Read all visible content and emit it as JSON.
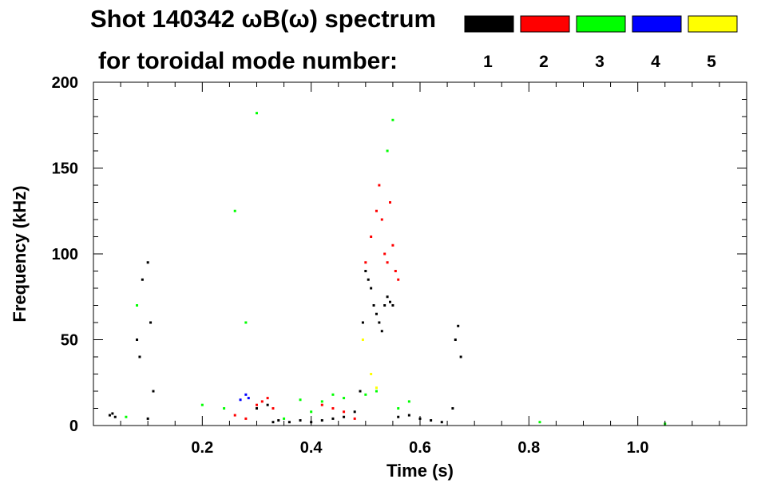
{
  "chart_data": {
    "type": "scatter",
    "title": "Shot 140342 ωB(ω) spectrum",
    "subtitle": "for toroidal mode number:",
    "xlabel": "Time (s)",
    "ylabel": "Frequency (kHz)",
    "xlim": [
      0.0,
      1.2
    ],
    "ylim": [
      0,
      200
    ],
    "xticks": [
      0.2,
      0.4,
      0.6,
      0.8,
      1.0
    ],
    "xtick_labels": [
      "0.2",
      "0.4",
      "0.6",
      "0.8",
      "1.0"
    ],
    "yticks": [
      0,
      50,
      100,
      150,
      200
    ],
    "ytick_labels": [
      "0",
      "50",
      "100",
      "150",
      "200"
    ],
    "grid": false,
    "legend_position": "top-right",
    "series": [
      {
        "name": "1",
        "color": "#000000",
        "points": [
          [
            0.03,
            6
          ],
          [
            0.035,
            7
          ],
          [
            0.04,
            5
          ],
          [
            0.08,
            50
          ],
          [
            0.085,
            40
          ],
          [
            0.09,
            85
          ],
          [
            0.1,
            95
          ],
          [
            0.105,
            60
          ],
          [
            0.11,
            20
          ],
          [
            0.1,
            4
          ],
          [
            0.3,
            10
          ],
          [
            0.32,
            12
          ],
          [
            0.33,
            2
          ],
          [
            0.34,
            3
          ],
          [
            0.36,
            2
          ],
          [
            0.38,
            3
          ],
          [
            0.4,
            2
          ],
          [
            0.42,
            3
          ],
          [
            0.44,
            4
          ],
          [
            0.46,
            5
          ],
          [
            0.48,
            8
          ],
          [
            0.49,
            20
          ],
          [
            0.495,
            60
          ],
          [
            0.5,
            90
          ],
          [
            0.505,
            85
          ],
          [
            0.51,
            80
          ],
          [
            0.515,
            70
          ],
          [
            0.52,
            65
          ],
          [
            0.525,
            60
          ],
          [
            0.53,
            55
          ],
          [
            0.535,
            70
          ],
          [
            0.54,
            75
          ],
          [
            0.545,
            72
          ],
          [
            0.55,
            70
          ],
          [
            0.56,
            5
          ],
          [
            0.58,
            6
          ],
          [
            0.6,
            4
          ],
          [
            0.62,
            3
          ],
          [
            0.64,
            2
          ],
          [
            0.66,
            10
          ],
          [
            0.665,
            50
          ],
          [
            0.67,
            58
          ],
          [
            0.675,
            40
          ]
        ]
      },
      {
        "name": "2",
        "color": "#ff0000",
        "points": [
          [
            0.26,
            6
          ],
          [
            0.28,
            4
          ],
          [
            0.3,
            12
          ],
          [
            0.31,
            14
          ],
          [
            0.32,
            16
          ],
          [
            0.33,
            10
          ],
          [
            0.42,
            12
          ],
          [
            0.44,
            10
          ],
          [
            0.46,
            8
          ],
          [
            0.5,
            95
          ],
          [
            0.51,
            110
          ],
          [
            0.52,
            125
          ],
          [
            0.525,
            140
          ],
          [
            0.53,
            120
          ],
          [
            0.535,
            100
          ],
          [
            0.54,
            95
          ],
          [
            0.545,
            130
          ],
          [
            0.55,
            105
          ],
          [
            0.555,
            90
          ],
          [
            0.56,
            85
          ],
          [
            0.48,
            4
          ]
        ]
      },
      {
        "name": "3",
        "color": "#00ff00",
        "points": [
          [
            0.06,
            5
          ],
          [
            0.08,
            70
          ],
          [
            0.2,
            12
          ],
          [
            0.24,
            10
          ],
          [
            0.26,
            125
          ],
          [
            0.28,
            60
          ],
          [
            0.3,
            182
          ],
          [
            0.35,
            4
          ],
          [
            0.38,
            15
          ],
          [
            0.4,
            8
          ],
          [
            0.42,
            14
          ],
          [
            0.44,
            18
          ],
          [
            0.46,
            16
          ],
          [
            0.5,
            18
          ],
          [
            0.52,
            20
          ],
          [
            0.54,
            160
          ],
          [
            0.55,
            178
          ],
          [
            0.56,
            10
          ],
          [
            0.58,
            14
          ],
          [
            0.82,
            2
          ],
          [
            1.05,
            1
          ]
        ]
      },
      {
        "name": "4",
        "color": "#0000ff",
        "points": [
          [
            0.27,
            15
          ],
          [
            0.28,
            18
          ],
          [
            0.285,
            16
          ]
        ]
      },
      {
        "name": "5",
        "color": "#ffff00",
        "points": [
          [
            0.495,
            50
          ],
          [
            0.51,
            30
          ],
          [
            0.52,
            22
          ]
        ]
      }
    ]
  }
}
